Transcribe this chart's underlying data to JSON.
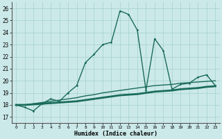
{
  "title": "",
  "xlabel": "Humidex (Indice chaleur)",
  "ylabel": "",
  "background_color": "#cce9e9",
  "grid_color": "#aad4d4",
  "line_color": "#1a6b5a",
  "x_ticks": [
    0,
    1,
    2,
    3,
    4,
    5,
    6,
    7,
    8,
    9,
    10,
    11,
    12,
    13,
    14,
    15,
    16,
    17,
    18,
    19,
    20,
    21,
    22,
    23
  ],
  "y_ticks": [
    17,
    18,
    19,
    20,
    21,
    22,
    23,
    24,
    25,
    26
  ],
  "xlim": [
    -0.5,
    23.5
  ],
  "ylim": [
    16.5,
    26.5
  ],
  "line1_x": [
    0,
    1,
    2,
    3,
    4,
    5,
    6,
    7,
    8,
    9,
    10,
    11,
    12,
    13,
    14,
    15,
    16,
    17,
    18,
    19,
    20,
    21,
    22,
    23
  ],
  "line1_y": [
    18.0,
    17.8,
    17.5,
    18.1,
    18.5,
    18.3,
    19.0,
    19.6,
    21.5,
    22.2,
    23.0,
    23.2,
    25.8,
    25.5,
    24.2,
    19.2,
    23.5,
    22.5,
    19.3,
    19.7,
    19.8,
    20.3,
    20.5,
    19.6
  ],
  "line2_x": [
    0,
    1,
    2,
    3,
    4,
    5,
    6,
    7,
    8,
    9,
    10,
    11,
    12,
    13,
    14,
    15,
    16,
    17,
    18,
    19,
    20,
    21,
    22,
    23
  ],
  "line2_y": [
    18.0,
    18.0,
    18.05,
    18.1,
    18.15,
    18.2,
    18.25,
    18.3,
    18.4,
    18.5,
    18.6,
    18.7,
    18.8,
    18.85,
    18.9,
    19.0,
    19.1,
    19.15,
    19.2,
    19.3,
    19.35,
    19.4,
    19.5,
    19.55
  ],
  "line3_x": [
    0,
    1,
    2,
    3,
    4,
    5,
    6,
    7,
    8,
    9,
    10,
    11,
    12,
    13,
    14,
    15,
    16,
    17,
    18,
    19,
    20,
    21,
    22,
    23
  ],
  "line3_y": [
    18.0,
    18.0,
    18.1,
    18.2,
    18.3,
    18.4,
    18.5,
    18.6,
    18.75,
    18.85,
    19.0,
    19.1,
    19.2,
    19.3,
    19.4,
    19.5,
    19.6,
    19.65,
    19.7,
    19.8,
    19.85,
    19.9,
    19.95,
    20.0
  ]
}
